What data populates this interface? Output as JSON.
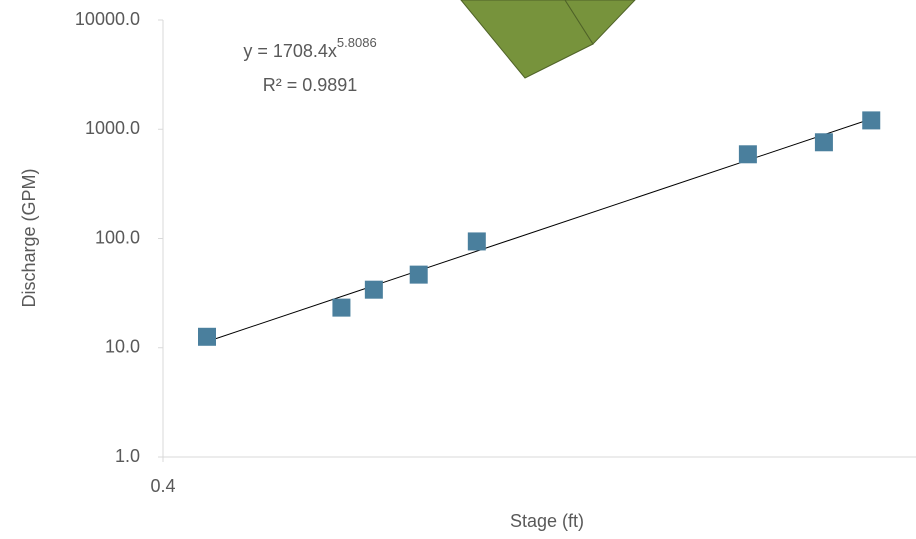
{
  "chart_data": {
    "type": "scatter",
    "x_label": "Stage (ft)",
    "y_label": "Discharge (GPM)",
    "x": [
      0.422,
      0.497,
      0.517,
      0.546,
      0.586,
      0.815,
      0.894,
      0.947
    ],
    "series": [
      {
        "color": "#4a7f9d",
        "values": [
          12.6,
          23.3,
          34,
          46.7,
          94,
          590,
          760,
          1205
        ]
      }
    ],
    "xlim": [
      0.4,
      1
    ],
    "xticks": [
      0.4
    ],
    "x_log": true,
    "ylim": [
      1,
      10000
    ],
    "y_log": true,
    "yticks": [
      {
        "value": 1,
        "label": "1.0"
      },
      {
        "value": 10,
        "label": "10.0"
      },
      {
        "value": 100,
        "label": "100.0"
      },
      {
        "value": 1000,
        "label": "1000.0"
      },
      {
        "value": 10000,
        "label": "10000.0"
      }
    ],
    "trendline": {
      "coefficient": 1708.4,
      "exponent": 5.8086,
      "color": "#000000"
    },
    "equation_text": "y = 1708.4x",
    "equation_exponent": "5.8086",
    "r_squared_text": "R² = 0.9891"
  }
}
